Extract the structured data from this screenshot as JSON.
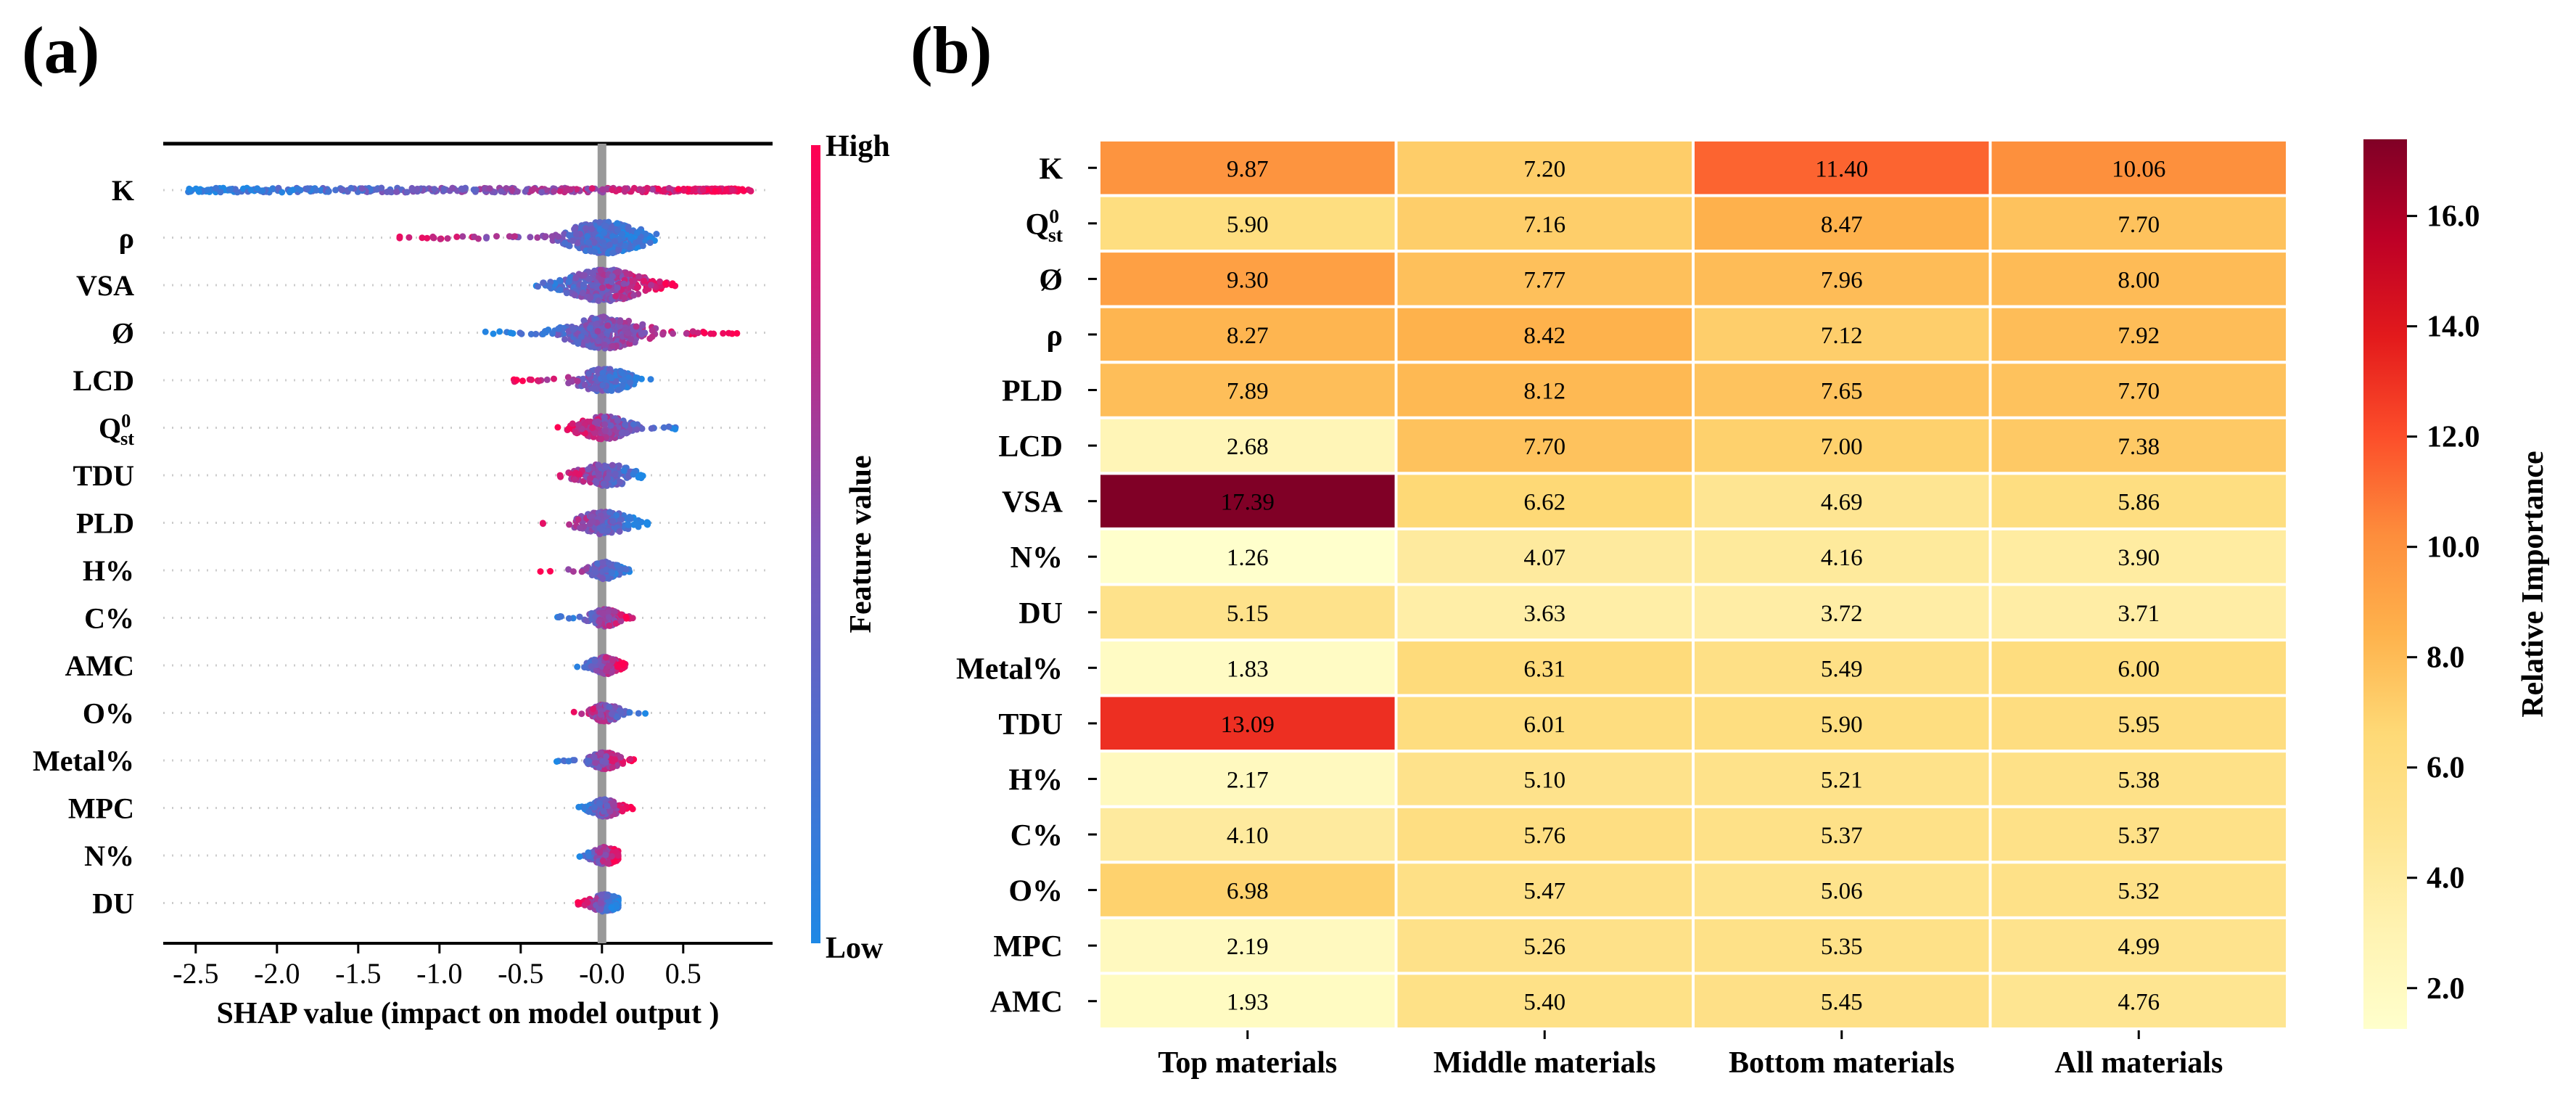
{
  "panel_a": {
    "label": "(a)"
  },
  "panel_b": {
    "label": "(b)"
  },
  "chart_data": [
    {
      "type": "scatter",
      "subtype": "shap-beeswarm",
      "title": "",
      "xlabel": "SHAP value (impact on model output )",
      "ylabel": "",
      "xlim": [
        -2.7,
        1.05
      ],
      "xticks": [
        -2.5,
        -2.0,
        -1.5,
        -1.0,
        -0.5,
        -0.0,
        0.5
      ],
      "xtick_labels": [
        "-2.5",
        "-2.0",
        "-1.5",
        "-1.0",
        "-0.5",
        "-0.0",
        "0.5"
      ],
      "colorbar": {
        "label": "Feature value",
        "high": "High",
        "low": "Low",
        "low_color": "#1e88e5",
        "high_color": "#ff0052"
      },
      "features": [
        {
          "name": "K",
          "sub": "",
          "sup": "",
          "min": -2.55,
          "max": 1.0,
          "lowSide": "left",
          "shape": "long"
        },
        {
          "name": "ρ",
          "sub": "",
          "sup": "",
          "min": -1.25,
          "max": 0.4,
          "lowSide": "right",
          "shape": "wide"
        },
        {
          "name": "VSA",
          "sub": "",
          "sup": "",
          "min": -0.5,
          "max": 0.45,
          "lowSide": "left",
          "shape": "wide"
        },
        {
          "name": "Ø",
          "sub": "",
          "sup": "",
          "min": -0.75,
          "max": 0.85,
          "lowSide": "left",
          "shape": "wide"
        },
        {
          "name": "LCD",
          "sub": "",
          "sup": "",
          "min": -0.55,
          "max": 0.3,
          "lowSide": "right",
          "shape": "mid"
        },
        {
          "name": "Q",
          "sub": "st",
          "sup": "0",
          "min": -0.3,
          "max": 0.52,
          "lowSide": "right",
          "shape": "mid"
        },
        {
          "name": "TDU",
          "sub": "",
          "sup": "",
          "min": -0.3,
          "max": 0.3,
          "lowSide": "right",
          "shape": "mid"
        },
        {
          "name": "PLD",
          "sub": "",
          "sup": "",
          "min": -0.38,
          "max": 0.3,
          "lowSide": "right",
          "shape": "mid"
        },
        {
          "name": "H%",
          "sub": "",
          "sup": "",
          "min": -0.38,
          "max": 0.22,
          "lowSide": "right",
          "shape": "narrow"
        },
        {
          "name": "C%",
          "sub": "",
          "sup": "",
          "min": -0.28,
          "max": 0.22,
          "lowSide": "left",
          "shape": "narrow"
        },
        {
          "name": "AMC",
          "sub": "",
          "sup": "",
          "min": -0.18,
          "max": 0.15,
          "lowSide": "left",
          "shape": "narrow"
        },
        {
          "name": "O%",
          "sub": "",
          "sup": "",
          "min": -0.2,
          "max": 0.3,
          "lowSide": "right",
          "shape": "narrow"
        },
        {
          "name": "Metal%",
          "sub": "",
          "sup": "",
          "min": -0.28,
          "max": 0.2,
          "lowSide": "left",
          "shape": "narrow"
        },
        {
          "name": "MPC",
          "sub": "",
          "sup": "",
          "min": -0.15,
          "max": 0.2,
          "lowSide": "left",
          "shape": "narrow"
        },
        {
          "name": "N%",
          "sub": "",
          "sup": "",
          "min": -0.15,
          "max": 0.1,
          "lowSide": "left",
          "shape": "narrow"
        },
        {
          "name": "DU",
          "sub": "",
          "sup": "",
          "min": -0.15,
          "max": 0.1,
          "lowSide": "right",
          "shape": "narrow"
        }
      ]
    },
    {
      "type": "heatmap",
      "title": "",
      "columns": [
        "Top materials",
        "Middle materials",
        "Bottom materials",
        "All materials"
      ],
      "rows": [
        {
          "name": "K",
          "sub": "",
          "sup": ""
        },
        {
          "name": "Q",
          "sub": "st",
          "sup": "0"
        },
        {
          "name": "Ø",
          "sub": "",
          "sup": ""
        },
        {
          "name": "ρ",
          "sub": "",
          "sup": ""
        },
        {
          "name": "PLD",
          "sub": "",
          "sup": ""
        },
        {
          "name": "LCD",
          "sub": "",
          "sup": ""
        },
        {
          "name": "VSA",
          "sub": "",
          "sup": ""
        },
        {
          "name": "N%",
          "sub": "",
          "sup": ""
        },
        {
          "name": "DU",
          "sub": "",
          "sup": ""
        },
        {
          "name": "Metal%",
          "sub": "",
          "sup": ""
        },
        {
          "name": "TDU",
          "sub": "",
          "sup": ""
        },
        {
          "name": "H%",
          "sub": "",
          "sup": ""
        },
        {
          "name": "C%",
          "sub": "",
          "sup": ""
        },
        {
          "name": "O%",
          "sub": "",
          "sup": ""
        },
        {
          "name": "MPC",
          "sub": "",
          "sup": ""
        },
        {
          "name": "AMC",
          "sub": "",
          "sup": ""
        }
      ],
      "values": [
        [
          9.87,
          7.2,
          11.4,
          10.06
        ],
        [
          5.9,
          7.16,
          8.47,
          7.7
        ],
        [
          9.3,
          7.77,
          7.96,
          8.0
        ],
        [
          8.27,
          8.42,
          7.12,
          7.92
        ],
        [
          7.89,
          8.12,
          7.65,
          7.7
        ],
        [
          2.68,
          7.7,
          7.0,
          7.38
        ],
        [
          17.39,
          6.62,
          4.69,
          5.86
        ],
        [
          1.26,
          4.07,
          4.16,
          3.9
        ],
        [
          5.15,
          3.63,
          3.72,
          3.71
        ],
        [
          1.83,
          6.31,
          5.49,
          6.0
        ],
        [
          13.09,
          6.01,
          5.9,
          5.95
        ],
        [
          2.17,
          5.1,
          5.21,
          5.38
        ],
        [
          4.1,
          5.76,
          5.37,
          5.37
        ],
        [
          6.98,
          5.47,
          5.06,
          5.32
        ],
        [
          2.19,
          5.26,
          5.35,
          4.99
        ],
        [
          1.93,
          5.4,
          5.45,
          4.76
        ]
      ],
      "value_labels": [
        [
          "9.87",
          "7.20",
          "11.40",
          "10.06"
        ],
        [
          "5.90",
          "7.16",
          "8.47",
          "7.70"
        ],
        [
          "9.30",
          "7.77",
          "7.96",
          "8.00"
        ],
        [
          "8.27",
          "8.42",
          "7.12",
          "7.92"
        ],
        [
          "7.89",
          "8.12",
          "7.65",
          "7.70"
        ],
        [
          "2.68",
          "7.70",
          "7.00",
          "7.38"
        ],
        [
          "17.39",
          "6.62",
          "4.69",
          "5.86"
        ],
        [
          "1.26",
          "4.07",
          "4.16",
          "3.90"
        ],
        [
          "5.15",
          "3.63",
          "3.72",
          "3.71"
        ],
        [
          "1.83",
          "6.31",
          "5.49",
          "6.00"
        ],
        [
          "13.09",
          "6.01",
          "5.90",
          "5.95"
        ],
        [
          "2.17",
          "5.10",
          "5.21",
          "5.38"
        ],
        [
          "4.10",
          "5.76",
          "5.37",
          "5.37"
        ],
        [
          "6.98",
          "5.47",
          "5.06",
          "5.32"
        ],
        [
          "2.19",
          "5.26",
          "5.35",
          "4.99"
        ],
        [
          "1.93",
          "5.40",
          "5.45",
          "4.76"
        ]
      ],
      "colorbar": {
        "label": "Relative Importance",
        "vmin": 1.26,
        "vmax": 17.39,
        "ticks": [
          2.0,
          4.0,
          6.0,
          8.0,
          10.0,
          12.0,
          14.0,
          16.0
        ],
        "tick_labels": [
          "2.0",
          "4.0",
          "6.0",
          "8.0",
          "10.0",
          "12.0",
          "14.0",
          "16.0"
        ],
        "colormap": "YlOrRd",
        "stops": [
          "#ffffcc",
          "#fff3b2",
          "#fee48f",
          "#fed976",
          "#feb24c",
          "#fd8d3c",
          "#fc4e2a",
          "#e31a1c",
          "#bd0026",
          "#800026"
        ]
      }
    }
  ]
}
